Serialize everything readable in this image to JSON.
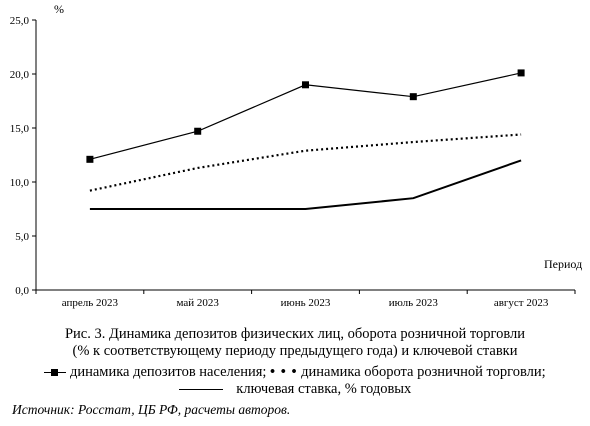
{
  "chart_data": {
    "type": "line",
    "y_unit_label": "%",
    "xlabel": "Период",
    "ylim": [
      0,
      25
    ],
    "y_ticks": [
      "0,0",
      "5,0",
      "10,0",
      "15,0",
      "20,0",
      "25,0"
    ],
    "categories": [
      "апрель 2023",
      "май 2023",
      "июнь 2023",
      "июль 2023",
      "август 2023"
    ],
    "grid": false,
    "series": [
      {
        "name": "динамика депозитов населения",
        "style": "solid-square-markers",
        "values": [
          12.1,
          14.7,
          19.0,
          17.9,
          20.1
        ]
      },
      {
        "name": "динамика оборота розничной торговли",
        "style": "dotted",
        "values": [
          9.2,
          11.3,
          12.9,
          13.7,
          14.4
        ]
      },
      {
        "name": "ключевая ставка, % годовых",
        "style": "solid",
        "values": [
          7.5,
          7.5,
          7.5,
          8.5,
          12.0
        ]
      }
    ]
  },
  "caption": {
    "line1": "Рис. 3. Динамика депозитов физических лиц, оборота розничной торговли",
    "line2": "(% к соответствующему периоду предыдущего года) и ключевой ставки"
  },
  "legend": {
    "deposits_label": "динамика депозитов населения;",
    "retail_symbol": "• • •",
    "retail_label": "динамика оборота розничной торговли;",
    "key_rate_label": "ключевая ставка, % годовых"
  },
  "source": "Источник: Росстат, ЦБ РФ, расчеты авторов."
}
